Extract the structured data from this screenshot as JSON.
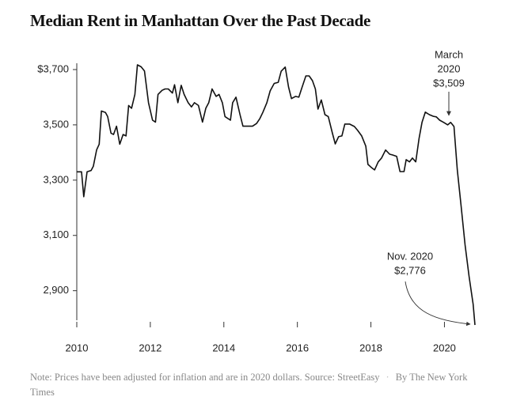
{
  "chart_data": {
    "type": "line",
    "title": "Median Rent in Manhattan Over the Past Decade",
    "x": [
      2010.0,
      2010.13,
      2010.19,
      2010.28,
      2010.39,
      2010.45,
      2010.54,
      2010.61,
      2010.67,
      2010.78,
      2010.84,
      2010.93,
      2011.0,
      2011.08,
      2011.17,
      2011.26,
      2011.34,
      2011.41,
      2011.49,
      2011.58,
      2011.65,
      2011.75,
      2011.84,
      2011.95,
      2012.06,
      2012.14,
      2012.21,
      2012.32,
      2012.4,
      2012.49,
      2012.6,
      2012.66,
      2012.75,
      2012.84,
      2012.92,
      2013.03,
      2013.12,
      2013.2,
      2013.31,
      2013.42,
      2013.51,
      2013.59,
      2013.68,
      2013.79,
      2013.87,
      2013.96,
      2014.03,
      2014.18,
      2014.24,
      2014.33,
      2014.44,
      2014.52,
      2014.65,
      2014.78,
      2014.89,
      2014.98,
      2015.06,
      2015.17,
      2015.26,
      2015.37,
      2015.48,
      2015.56,
      2015.67,
      2015.76,
      2015.84,
      2015.95,
      2016.04,
      2016.13,
      2016.23,
      2016.32,
      2016.41,
      2016.49,
      2016.56,
      2016.65,
      2016.75,
      2016.84,
      2016.95,
      2017.03,
      2017.12,
      2017.21,
      2017.29,
      2017.42,
      2017.55,
      2017.64,
      2017.75,
      2017.86,
      2017.92,
      2018.01,
      2018.1,
      2018.2,
      2018.29,
      2018.4,
      2018.51,
      2018.59,
      2018.7,
      2018.79,
      2018.9,
      2018.96,
      2019.05,
      2019.13,
      2019.22,
      2019.31,
      2019.39,
      2019.48,
      2019.59,
      2019.7,
      2019.78,
      2019.87,
      2019.98,
      2020.09,
      2020.17,
      2020.26,
      2020.35,
      2020.45,
      2020.56,
      2020.67,
      2020.78,
      2020.83
    ],
    "series": [
      {
        "color": "#111111",
        "values": [
          3330,
          3330,
          3240,
          3330,
          3335,
          3350,
          3410,
          3430,
          3550,
          3545,
          3530,
          3470,
          3465,
          3495,
          3430,
          3465,
          3460,
          3570,
          3560,
          3610,
          3717,
          3710,
          3695,
          3580,
          3517,
          3510,
          3610,
          3625,
          3630,
          3630,
          3615,
          3645,
          3580,
          3643,
          3610,
          3580,
          3565,
          3580,
          3570,
          3510,
          3560,
          3580,
          3630,
          3603,
          3610,
          3580,
          3530,
          3517,
          3580,
          3600,
          3537,
          3495,
          3495,
          3495,
          3505,
          3523,
          3545,
          3580,
          3623,
          3650,
          3654,
          3694,
          3709,
          3637,
          3595,
          3603,
          3600,
          3637,
          3677,
          3677,
          3660,
          3630,
          3557,
          3590,
          3537,
          3530,
          3471,
          3431,
          3457,
          3460,
          3503,
          3503,
          3494,
          3480,
          3460,
          3423,
          3357,
          3346,
          3337,
          3366,
          3380,
          3409,
          3394,
          3391,
          3386,
          3331,
          3331,
          3374,
          3366,
          3380,
          3366,
          3451,
          3509,
          3546,
          3537,
          3531,
          3529,
          3517,
          3509,
          3500,
          3509,
          3494,
          3337,
          3209,
          3066,
          2951,
          2851,
          2776
        ]
      }
    ],
    "xlim": [
      2010,
      2020.83
    ],
    "ylim": [
      2776,
      3740
    ],
    "xticks": [
      2010,
      2012,
      2014,
      2016,
      2018,
      2020
    ],
    "yticks": [
      {
        "value": 3700,
        "label": "$3,700"
      },
      {
        "value": 3500,
        "label": "3,500"
      },
      {
        "value": 3300,
        "label": "3,300"
      },
      {
        "value": 3100,
        "label": "3,100"
      },
      {
        "value": 2900,
        "label": "2,900"
      }
    ],
    "annotations": [
      {
        "lines": [
          "March",
          "2020",
          "$3,509"
        ]
      },
      {
        "lines": [
          "Nov. 2020",
          "$2,776"
        ]
      }
    ],
    "note": "Note: Prices have been adjusted for inflation and are in 2020 dollars. Source: StreetEasy",
    "credit": "By The New York Times"
  }
}
